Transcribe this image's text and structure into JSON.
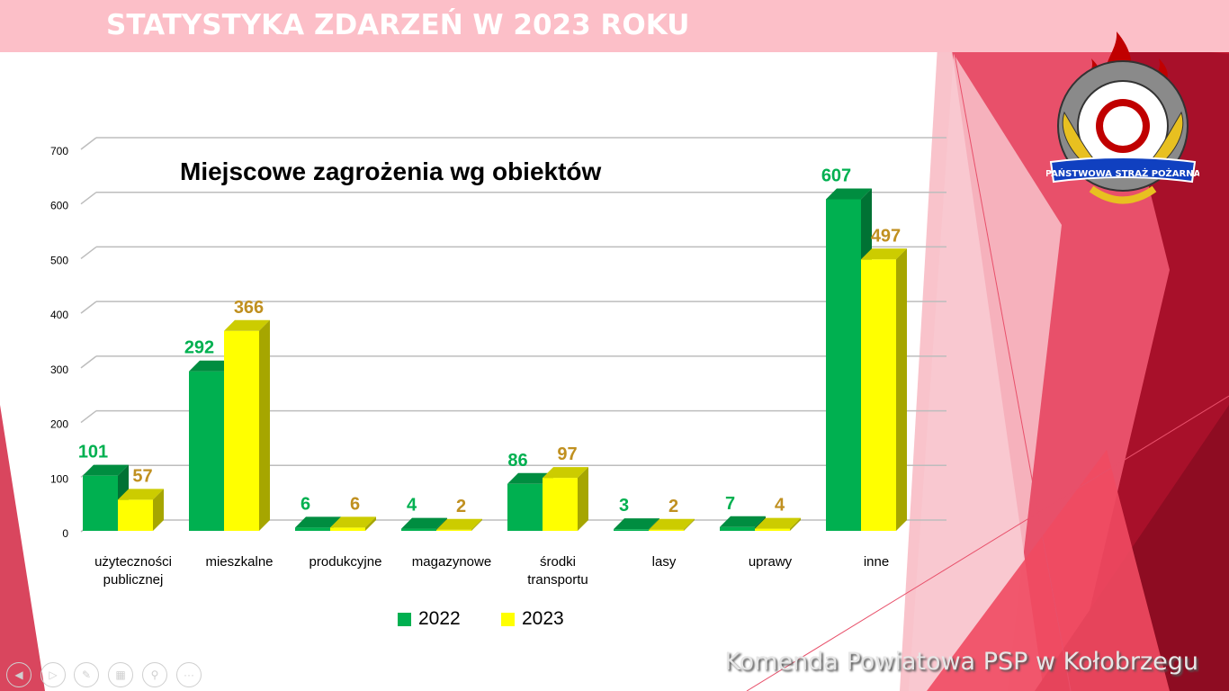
{
  "slide": {
    "title": "STATYSTYKA ZDARZEŃ W 2023 ROKU",
    "footer": "Komenda Powiatowa PSP w Kołobrzegu",
    "logo_text": "PAŃSTWOWA STRAŻ POŻARNA",
    "nav_icons": [
      "previous-icon",
      "next-icon",
      "pen-icon",
      "slides-icon",
      "zoom-icon",
      "more-icon"
    ]
  },
  "chart_data": {
    "type": "bar",
    "title": "Miejscowe zagrożenia wg obiektów",
    "categories": [
      "użyteczności publicznej",
      "mieszkalne",
      "produkcyjne",
      "magazynowe",
      "środki transportu",
      "lasy",
      "uprawy",
      "inne"
    ],
    "series": [
      {
        "name": "2022",
        "color": "#00b050",
        "label_color": "#00b050",
        "values": [
          101,
          292,
          6,
          4,
          86,
          3,
          7,
          607
        ]
      },
      {
        "name": "2023",
        "color": "#ffff00",
        "label_color": "#c09020",
        "values": [
          57,
          366,
          6,
          2,
          97,
          2,
          4,
          497
        ]
      }
    ],
    "yticks": [
      "0",
      "100",
      "200",
      "300",
      "400",
      "500",
      "600",
      "700"
    ],
    "ylim": [
      0,
      700
    ],
    "grid": true,
    "legend": "bottom",
    "style": "3d-clustered-column"
  }
}
